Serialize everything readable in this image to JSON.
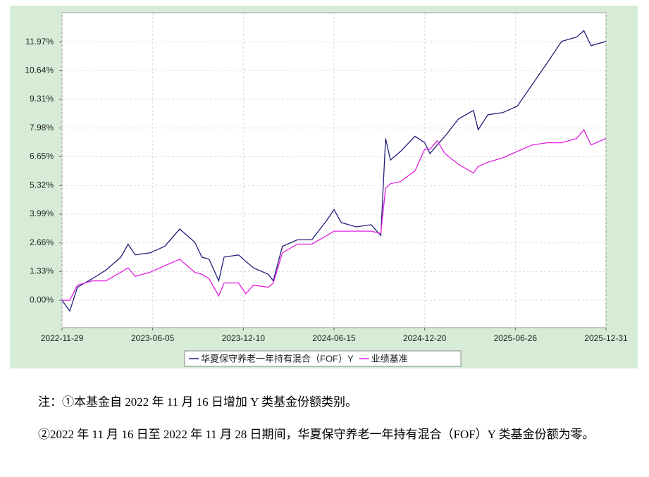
{
  "chart_data": {
    "type": "line",
    "x": [
      "2022-11-29",
      "2022-12-15",
      "2022-12-31",
      "2023-01-31",
      "2023-02-28",
      "2023-03-31",
      "2023-04-15",
      "2023-04-30",
      "2023-05-31",
      "2023-06-30",
      "2023-07-31",
      "2023-08-31",
      "2023-09-15",
      "2023-09-30",
      "2023-10-20",
      "2023-10-31",
      "2023-11-30",
      "2023-12-15",
      "2023-12-31",
      "2024-01-31",
      "2024-02-10",
      "2024-02-29",
      "2024-03-31",
      "2024-04-30",
      "2024-05-31",
      "2024-06-15",
      "2024-06-30",
      "2024-07-31",
      "2024-08-31",
      "2024-09-20",
      "2024-09-30",
      "2024-10-10",
      "2024-10-31",
      "2024-11-30",
      "2024-12-20",
      "2024-12-31",
      "2025-01-15",
      "2025-01-31",
      "2025-02-28",
      "2025-03-31",
      "2025-04-10",
      "2025-04-30",
      "2025-05-31",
      "2025-06-30",
      "2025-07-31",
      "2025-08-31",
      "2025-09-30",
      "2025-10-31",
      "2025-11-15",
      "2025-11-30",
      "2025-12-31"
    ],
    "series": [
      {
        "name": "华夏保守养老一年持有混合（FOF）Y",
        "color": "#1f1f7a",
        "values": [
          0,
          -0.5,
          0.6,
          1.0,
          1.4,
          2.0,
          2.6,
          2.1,
          2.2,
          2.5,
          3.3,
          2.7,
          2.0,
          1.9,
          0.9,
          2.0,
          2.1,
          1.8,
          1.5,
          1.2,
          0.9,
          2.5,
          2.8,
          2.8,
          3.7,
          4.2,
          3.6,
          3.4,
          3.5,
          3.0,
          7.5,
          6.5,
          6.9,
          7.6,
          7.3,
          6.8,
          7.2,
          7.6,
          8.4,
          8.8,
          7.9,
          8.6,
          8.7,
          9.0,
          10.0,
          11.0,
          12.0,
          12.2,
          12.5,
          11.8,
          12.0
        ]
      },
      {
        "name": "业绩基准",
        "color": "#e020e0",
        "values": [
          0,
          0.0,
          0.7,
          0.9,
          0.9,
          1.3,
          1.5,
          1.1,
          1.3,
          1.6,
          1.9,
          1.3,
          1.2,
          1.0,
          0.2,
          0.8,
          0.8,
          0.3,
          0.7,
          0.6,
          0.8,
          2.2,
          2.6,
          2.6,
          3.0,
          3.2,
          3.2,
          3.2,
          3.2,
          3.1,
          5.2,
          5.4,
          5.5,
          6.0,
          7.0,
          7.0,
          7.4,
          6.8,
          6.3,
          5.9,
          6.2,
          6.4,
          6.6,
          6.9,
          7.2,
          7.3,
          7.3,
          7.5,
          7.9,
          7.2,
          7.5
        ]
      }
    ],
    "xlim": [
      "2022-11-29",
      "2025-12-31"
    ],
    "xticks": [
      "2022-11-29",
      "2023-06-05",
      "2023-12-10",
      "2024-06-15",
      "2024-12-20",
      "2025-06-26",
      "2025-12-31"
    ],
    "ylim": [
      -1.27,
      13.33
    ],
    "yticks": [
      {
        "value": 0,
        "label": "0.00%"
      },
      {
        "value": 1.33,
        "label": "1.33%"
      },
      {
        "value": 2.66,
        "label": "2.66%"
      },
      {
        "value": 3.99,
        "label": "3.99%"
      },
      {
        "value": 5.32,
        "label": "5.32%"
      },
      {
        "value": 6.65,
        "label": "6.65%"
      },
      {
        "value": 7.98,
        "label": "7.98%"
      },
      {
        "value": 9.31,
        "label": "9.31%"
      },
      {
        "value": 10.64,
        "label": "10.64%"
      },
      {
        "value": 11.97,
        "label": "11.97%"
      }
    ],
    "grid": true
  },
  "notes": [
    "注：①本基金自 2022 年 11 月 16 日增加 Y 类基金份额类别。",
    "②2022 年 11 月 16 日至 2022 年 11 月 28 日期间，华夏保守养老一年持有混合（FOF）Y 类基金份额为零。"
  ]
}
